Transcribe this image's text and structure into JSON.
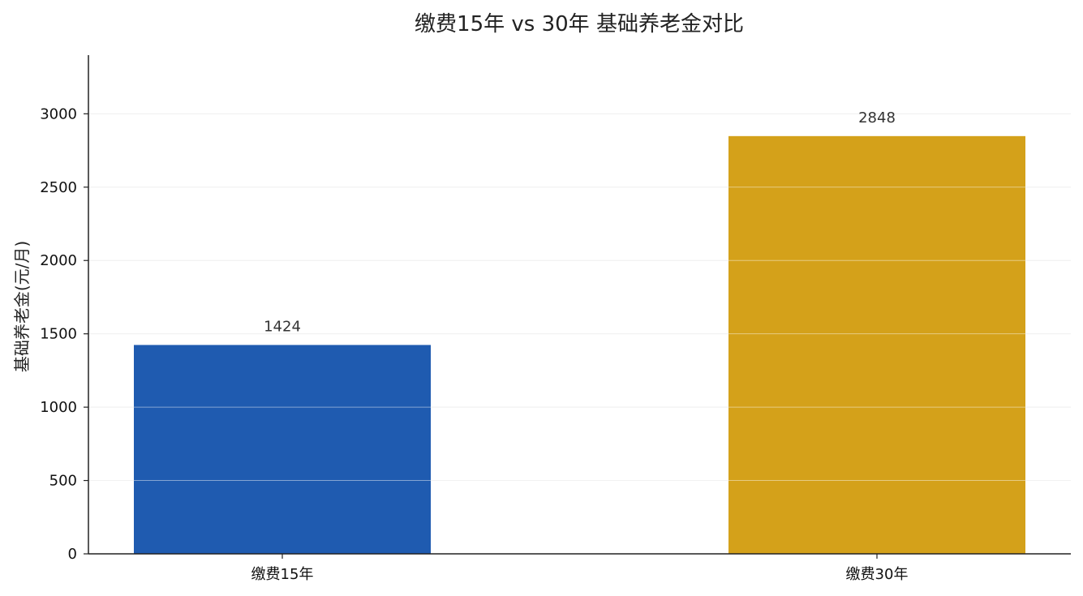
{
  "chart_data": {
    "type": "bar",
    "title": "缴费15年 vs 30年 基础养老金对比",
    "xlabel": "",
    "ylabel": "基础养老金(元/月)",
    "categories": [
      "缴费15年",
      "缴费30年"
    ],
    "values": [
      1424,
      2848
    ],
    "data_labels": [
      "1424",
      "2848"
    ],
    "colors": [
      "#1f5bb0",
      "#d4a11a"
    ],
    "ylim": [
      0,
      3400
    ],
    "yticks": [
      0,
      500,
      1000,
      1500,
      2000,
      2500,
      3000
    ],
    "grid": true,
    "legend": "none"
  }
}
